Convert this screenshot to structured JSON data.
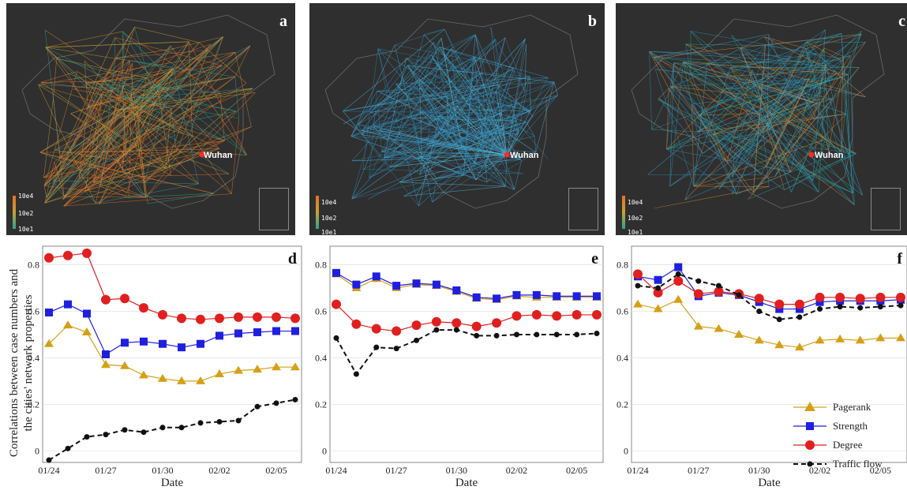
{
  "maps": [
    {
      "letter": "a",
      "city": "Wuhan",
      "legend_ticks": [
        "10e4",
        "10e2",
        "10e1"
      ]
    },
    {
      "letter": "b",
      "city": "Wuhan",
      "legend_ticks": [
        "10e4",
        "10e2",
        "10e1"
      ]
    },
    {
      "letter": "c",
      "city": "Wuhan",
      "legend_ticks": [
        "10e4",
        "10e2",
        "10e1"
      ]
    }
  ],
  "y_axis_label_line1": "Correlations between case numbers and",
  "y_axis_label_line2": "the cities' network properties",
  "chart_data": [
    {
      "panel": "d",
      "type": "line",
      "xlabel": "Date",
      "x_ticks": [
        "01/24",
        "01/27",
        "01/30",
        "02/02",
        "02/05"
      ],
      "ylim": [
        -0.05,
        0.88
      ],
      "y_ticks": [
        0,
        0.2,
        0.4,
        0.6,
        0.8
      ],
      "categories": [
        "01/24",
        "01/25",
        "01/26",
        "01/27",
        "01/28",
        "01/29",
        "01/30",
        "01/31",
        "02/01",
        "02/02",
        "02/03",
        "02/04",
        "02/05",
        "02/06"
      ],
      "series": [
        {
          "name": "Pagerank",
          "values": [
            0.46,
            0.54,
            0.51,
            0.37,
            0.365,
            0.325,
            0.31,
            0.3,
            0.3,
            0.33,
            0.345,
            0.35,
            0.36,
            0.36
          ]
        },
        {
          "name": "Strength",
          "values": [
            0.595,
            0.63,
            0.59,
            0.415,
            0.465,
            0.47,
            0.46,
            0.445,
            0.46,
            0.495,
            0.505,
            0.51,
            0.515,
            0.515
          ]
        },
        {
          "name": "Degree",
          "values": [
            0.83,
            0.84,
            0.85,
            0.65,
            0.655,
            0.615,
            0.585,
            0.57,
            0.565,
            0.57,
            0.575,
            0.575,
            0.575,
            0.57
          ]
        },
        {
          "name": "Traffic flow",
          "values": [
            -0.04,
            0.01,
            0.06,
            0.07,
            0.09,
            0.08,
            0.1,
            0.1,
            0.12,
            0.125,
            0.13,
            0.19,
            0.205,
            0.22
          ]
        }
      ]
    },
    {
      "panel": "e",
      "type": "line",
      "xlabel": "Date",
      "x_ticks": [
        "01/24",
        "01/27",
        "01/30",
        "02/02",
        "02/05"
      ],
      "ylim": [
        -0.05,
        0.88
      ],
      "y_ticks": [
        0,
        0.2,
        0.4,
        0.6,
        0.8
      ],
      "categories": [
        "01/24",
        "01/25",
        "01/26",
        "01/27",
        "01/28",
        "01/29",
        "01/30",
        "01/31",
        "02/01",
        "02/02",
        "02/03",
        "02/04",
        "02/05",
        "02/06"
      ],
      "series": [
        {
          "name": "Pagerank",
          "values": [
            0.76,
            0.7,
            0.74,
            0.7,
            0.715,
            0.71,
            0.685,
            0.655,
            0.65,
            0.665,
            0.66,
            0.66,
            0.66,
            0.66
          ]
        },
        {
          "name": "Strength",
          "values": [
            0.765,
            0.715,
            0.75,
            0.71,
            0.72,
            0.715,
            0.69,
            0.66,
            0.655,
            0.67,
            0.67,
            0.665,
            0.665,
            0.665
          ]
        },
        {
          "name": "Degree",
          "values": [
            0.63,
            0.545,
            0.525,
            0.515,
            0.54,
            0.555,
            0.55,
            0.535,
            0.55,
            0.58,
            0.585,
            0.58,
            0.585,
            0.585
          ]
        },
        {
          "name": "Traffic flow",
          "values": [
            0.485,
            0.33,
            0.445,
            0.44,
            0.475,
            0.52,
            0.52,
            0.495,
            0.495,
            0.5,
            0.5,
            0.5,
            0.5,
            0.505
          ]
        }
      ]
    },
    {
      "panel": "f",
      "type": "line",
      "xlabel": "Date",
      "x_ticks": [
        "01/24",
        "01/27",
        "01/30",
        "02/02",
        "02/05"
      ],
      "ylim": [
        -0.05,
        0.88
      ],
      "y_ticks": [
        0,
        0.2,
        0.4,
        0.6,
        0.8
      ],
      "categories": [
        "01/24",
        "01/25",
        "01/26",
        "01/27",
        "01/28",
        "01/29",
        "01/30",
        "01/31",
        "02/01",
        "02/02",
        "02/03",
        "02/04",
        "02/05",
        "02/06"
      ],
      "series": [
        {
          "name": "Pagerank",
          "values": [
            0.63,
            0.61,
            0.65,
            0.535,
            0.525,
            0.5,
            0.475,
            0.455,
            0.445,
            0.475,
            0.48,
            0.475,
            0.485,
            0.485
          ]
        },
        {
          "name": "Strength",
          "values": [
            0.75,
            0.735,
            0.79,
            0.665,
            0.68,
            0.67,
            0.64,
            0.61,
            0.61,
            0.64,
            0.645,
            0.645,
            0.645,
            0.65
          ]
        },
        {
          "name": "Degree",
          "values": [
            0.76,
            0.68,
            0.73,
            0.675,
            0.685,
            0.675,
            0.655,
            0.63,
            0.63,
            0.66,
            0.66,
            0.655,
            0.66,
            0.66
          ]
        },
        {
          "name": "Traffic flow",
          "values": [
            0.71,
            0.7,
            0.76,
            0.73,
            0.71,
            0.67,
            0.6,
            0.565,
            0.575,
            0.61,
            0.62,
            0.615,
            0.62,
            0.625
          ]
        }
      ]
    }
  ],
  "legend": [
    {
      "name": "Pagerank",
      "color": "#d4a017",
      "marker": "triangle",
      "dashed": false
    },
    {
      "name": "Strength",
      "color": "#1f1fe0",
      "marker": "square",
      "dashed": false
    },
    {
      "name": "Degree",
      "color": "#e01f1f",
      "marker": "circle",
      "dashed": false
    },
    {
      "name": "Traffic flow",
      "color": "#111111",
      "marker": "dot",
      "dashed": true
    }
  ],
  "colors": {
    "Pagerank": "#d4a017",
    "Strength": "#1f1fe0",
    "Degree": "#e01f1f",
    "Traffic flow": "#111111",
    "map_background": "#2f2f2f"
  }
}
